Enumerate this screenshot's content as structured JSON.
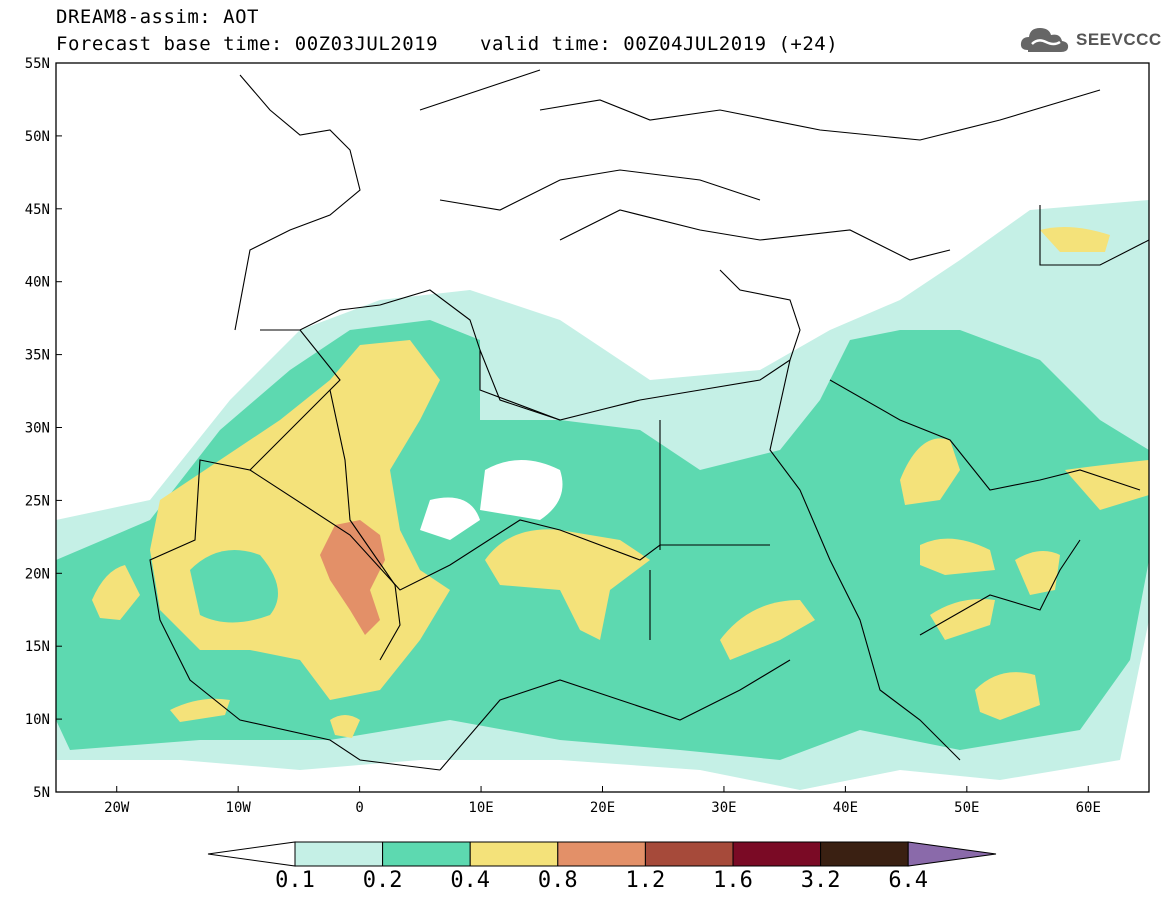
{
  "header": {
    "title": "DREAM8-assim: AOT",
    "base_time": "Forecast base time: 00Z03JUL2019",
    "valid_time": "valid time: 00Z04JUL2019 (+24)",
    "logo_text": "SEEVCCC"
  },
  "map": {
    "projection": "lat-lon",
    "lon_range": [
      -25,
      65
    ],
    "lat_range": [
      5,
      55
    ],
    "lat_labels": [
      "55N",
      "50N",
      "45N",
      "40N",
      "35N",
      "30N",
      "25N",
      "20N",
      "15N",
      "10N",
      "5N"
    ],
    "lon_labels": [
      "20W",
      "10W",
      "0",
      "10E",
      "20E",
      "30E",
      "40E",
      "50E",
      "60E"
    ],
    "field": "Aerosol optical thickness (AOT)",
    "max_region": "Algeria/Mali border near 0-2E, 17-23N"
  },
  "colorbar": {
    "labels": [
      "0.1",
      "0.2",
      "0.4",
      "0.8",
      "1.2",
      "1.6",
      "3.2",
      "6.4"
    ],
    "colors": [
      "#ffffff",
      "#c5f0e6",
      "#5dd9b0",
      "#f4e27a",
      "#e39068",
      "#a64a3a",
      "#7a0a25",
      "#3a2012",
      "#8a6aaa"
    ]
  },
  "colors": {
    "low": "#c5f0e6",
    "mid": "#5dd9b0",
    "high": "#f4e27a",
    "veryhigh": "#e39068",
    "border": "#000000"
  }
}
